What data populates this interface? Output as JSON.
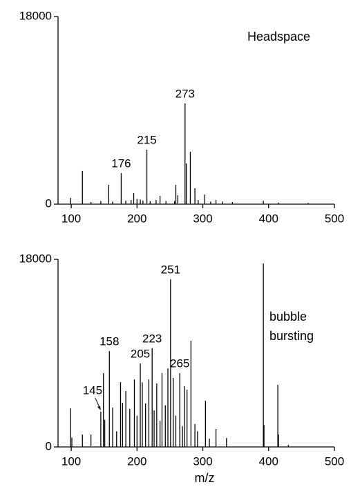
{
  "chart_data": [
    {
      "type": "stem",
      "color": "#000000",
      "label": [
        "Headspace"
      ],
      "x": [
        99,
        117,
        130,
        145,
        157,
        163,
        176,
        183,
        191,
        195,
        200,
        205,
        209,
        215,
        220,
        229,
        235,
        244,
        257,
        259,
        262,
        273,
        275,
        281,
        288,
        293,
        303,
        312,
        320,
        330,
        345,
        392,
        415,
        460
      ],
      "values": [
        600,
        3180,
        200,
        300,
        1850,
        250,
        2980,
        350,
        400,
        1060,
        500,
        450,
        350,
        5230,
        300,
        400,
        790,
        300,
        300,
        1850,
        860,
        9660,
        3900,
        5030,
        1520,
        400,
        930,
        250,
        400,
        250,
        200,
        330,
        150,
        120
      ],
      "annotations": [
        {
          "text": "176",
          "x": 176
        },
        {
          "text": "215",
          "x": 215
        },
        {
          "text": "273",
          "x": 273
        }
      ],
      "xlim": [
        80,
        500
      ],
      "xticks": [
        100,
        200,
        300,
        400,
        500
      ],
      "ylim": [
        0,
        18000
      ],
      "yticks": [
        0,
        18000
      ]
    },
    {
      "type": "stem",
      "color": "#000000",
      "label": [
        "bubble",
        "bursting"
      ],
      "xlabel": "m/z",
      "x": [
        99,
        101,
        117,
        130,
        145,
        149,
        151,
        158,
        163,
        169,
        175,
        178,
        183,
        189,
        196,
        200,
        205,
        208,
        213,
        218,
        223,
        226,
        230,
        235,
        238,
        243,
        247,
        251,
        255,
        259,
        265,
        269,
        272,
        276,
        282,
        288,
        292,
        304,
        310,
        320,
        336,
        392,
        393,
        414,
        415,
        430
      ],
      "values": [
        3700,
        900,
        1190,
        1190,
        3380,
        7080,
        2600,
        9200,
        3770,
        1500,
        6220,
        4240,
        5360,
        3640,
        6480,
        3000,
        8010,
        6200,
        4170,
        6480,
        9460,
        3500,
        6090,
        2500,
        7080,
        4000,
        7540,
        16080,
        6620,
        3000,
        7080,
        2000,
        5830,
        5490,
        10190,
        2200,
        1500,
        4430,
        800,
        1720,
        860,
        17600,
        2100,
        5960,
        1200,
        200
      ],
      "annotations": [
        {
          "text": "145",
          "x": 145,
          "arrow": true
        },
        {
          "text": "158",
          "x": 158
        },
        {
          "text": "205",
          "x": 205
        },
        {
          "text": "223",
          "x": 223
        },
        {
          "text": "251",
          "x": 251
        },
        {
          "text": "265",
          "x": 265
        }
      ],
      "xlim": [
        80,
        500
      ],
      "xticks": [
        100,
        200,
        300,
        400,
        500
      ],
      "ylim": [
        0,
        18000
      ],
      "yticks": [
        0,
        18000
      ]
    }
  ]
}
